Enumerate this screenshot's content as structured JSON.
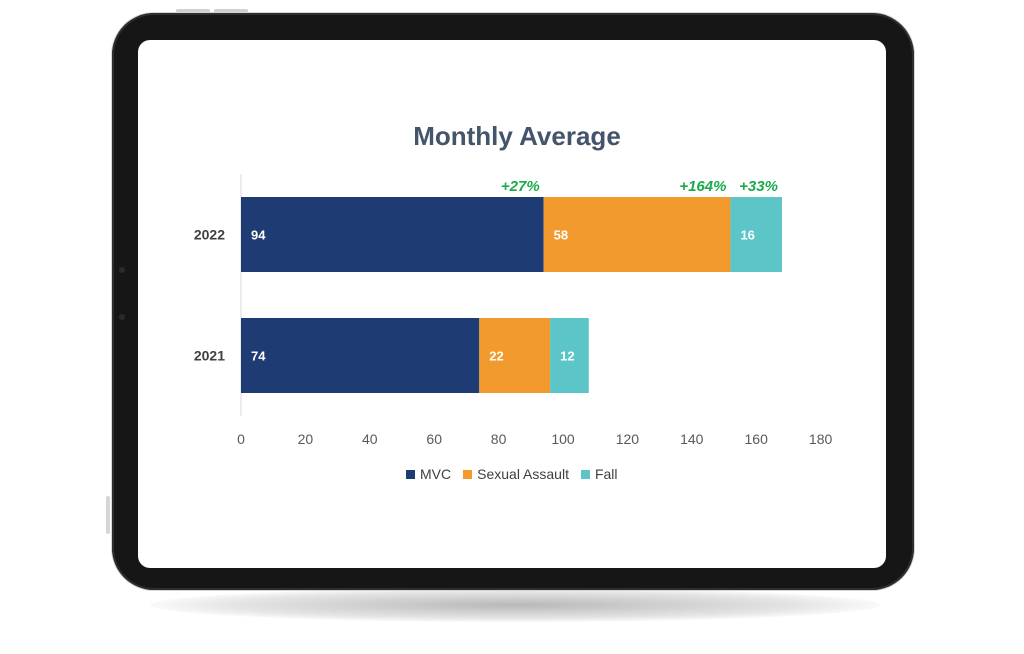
{
  "colors": {
    "mvc": "#1f3b73",
    "sexual_assault": "#f29a2e",
    "fall": "#5bc5c8",
    "change": "#1aaa4b",
    "title": "#44546a"
  },
  "chart_data": {
    "type": "bar",
    "orientation": "horizontal",
    "stacked": true,
    "title": "Monthly Average",
    "categories": [
      "2022",
      "2021"
    ],
    "series": [
      {
        "name": "MVC",
        "values": [
          94,
          74
        ],
        "color": "#1f3b73"
      },
      {
        "name": "Sexual Assault",
        "values": [
          58,
          22
        ],
        "color": "#f29a2e"
      },
      {
        "name": "Fall",
        "values": [
          16,
          12
        ],
        "color": "#5bc5c8"
      }
    ],
    "xlim": [
      0,
      180
    ],
    "x_ticks": [
      "0",
      "20",
      "40",
      "60",
      "80",
      "100",
      "120",
      "140",
      "160",
      "180"
    ],
    "annotations": [
      {
        "category": "2022",
        "series": "MVC",
        "text": "+27%"
      },
      {
        "category": "2022",
        "series": "Sexual Assault",
        "text": "+164%"
      },
      {
        "category": "2022",
        "series": "Fall",
        "text": "+33%"
      }
    ],
    "legend_position": "bottom",
    "grid": false
  }
}
